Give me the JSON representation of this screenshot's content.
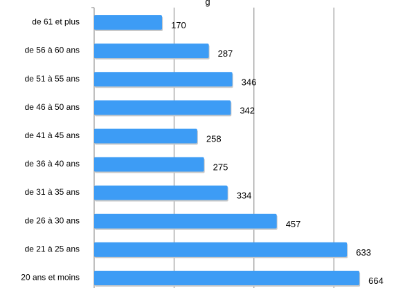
{
  "chart_data": {
    "type": "bar",
    "orientation": "horizontal",
    "title": "",
    "title_fragment": "g",
    "xlabel": "",
    "ylabel": "",
    "categories": [
      "de 61 et plus",
      "de 56 à 60 ans",
      "de 51 à 55 ans",
      "de 46 à 50 ans",
      "de 41 à 45 ans",
      "de 36 à 40 ans",
      "de 31 à 35 ans",
      "de 26 à 30 ans",
      "de 21 à 25 ans",
      "20 ans et moins"
    ],
    "values": [
      170,
      287,
      346,
      342,
      258,
      275,
      334,
      457,
      633,
      664
    ],
    "xlim": [
      0,
      800
    ],
    "gridlines": [
      0,
      200,
      400,
      600,
      800
    ],
    "grid": true,
    "data_labels": true,
    "legend": "none",
    "bar_color": "#3d9cf5",
    "bar_shadow_color": "#c8c8c8",
    "grid_color": "#808080"
  }
}
